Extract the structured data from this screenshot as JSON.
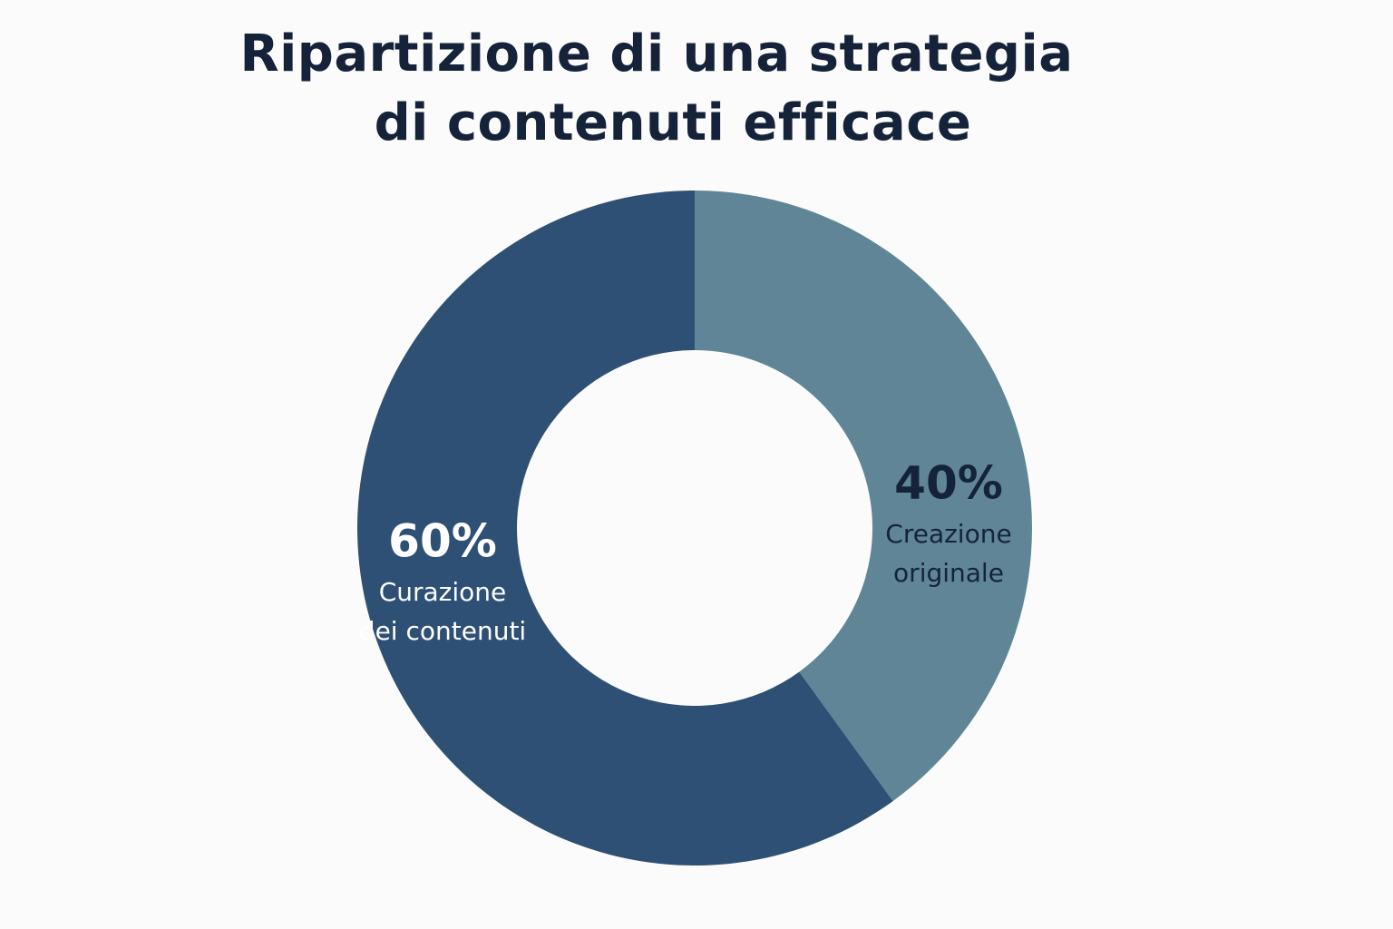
{
  "chart_data": {
    "type": "pie",
    "style": "donut",
    "title_lines": [
      "Ripartizione di una strategia",
      "di contenuti efficace"
    ],
    "slices": [
      {
        "label_lines": [
          "Creazione",
          "originale"
        ],
        "value": 40,
        "value_label": "40%",
        "color": "#5f8596",
        "text_color": "#15233a"
      },
      {
        "label_lines": [
          "Curazione",
          "dei contenuti"
        ],
        "value": 60,
        "value_label": "60%",
        "color": "#2e5075",
        "text_color": "#ffffff"
      }
    ],
    "start_angle_deg": 0,
    "direction": "clockwise",
    "legend": "none"
  }
}
